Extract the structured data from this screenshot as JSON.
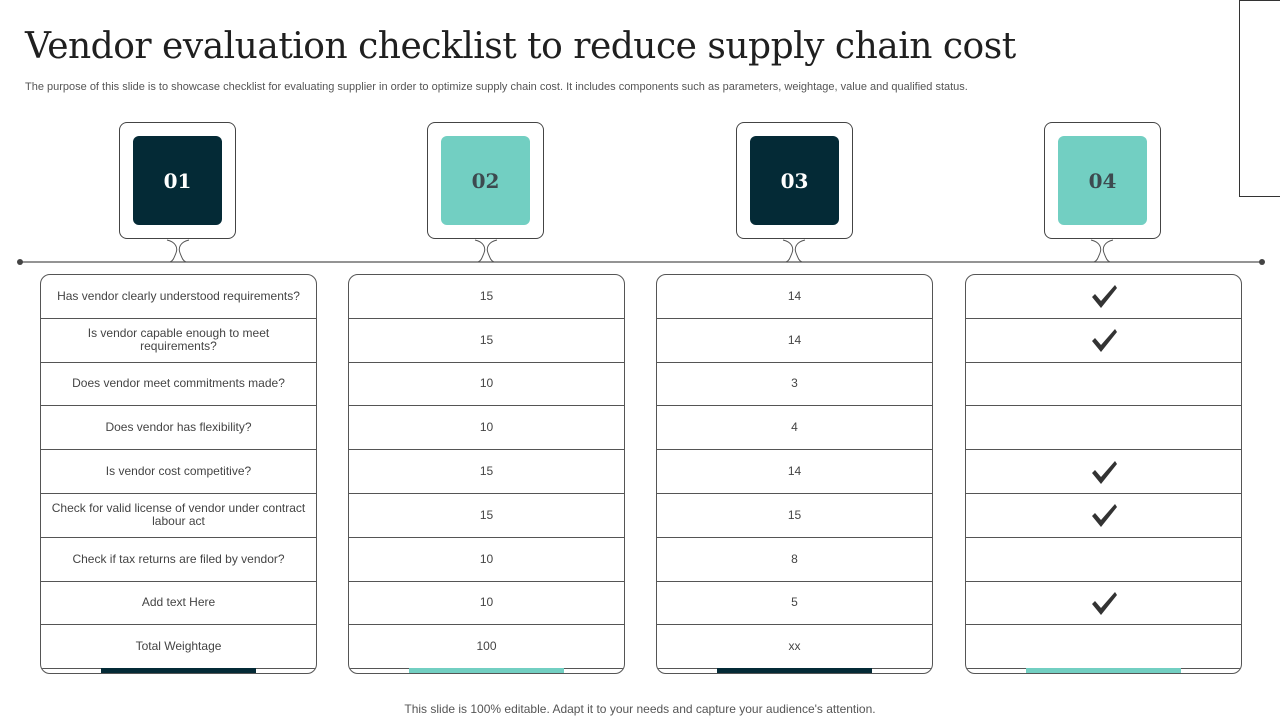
{
  "title": "Vendor evaluation checklist to reduce supply chain cost",
  "subtitle": "The purpose of this slide is to showcase checklist for evaluating supplier in order to optimize supply chain cost. It includes components such as parameters, weightage, value and qualified status.",
  "badges": [
    {
      "label": "01",
      "style": "dark"
    },
    {
      "label": "02",
      "style": "teal"
    },
    {
      "label": "03",
      "style": "dark"
    },
    {
      "label": "04",
      "style": "teal"
    }
  ],
  "colors": {
    "dark": "#042a36",
    "teal": "#72cfc2"
  },
  "parameters": [
    "Has vendor clearly understood requirements?",
    "Is vendor capable enough to meet requirements?",
    "Does vendor meet commitments made?",
    "Does vendor has flexibility?",
    "Is vendor cost competitive?",
    "Check for valid license of vendor under contract labour act",
    "Check if tax returns are filed by vendor?",
    "Add text Here",
    "Total Weightage"
  ],
  "weightage": [
    "15",
    "15",
    "10",
    "10",
    "15",
    "15",
    "10",
    "10",
    "100"
  ],
  "values": [
    "14",
    "14",
    "3",
    "4",
    "14",
    "15",
    "8",
    "5",
    "xx"
  ],
  "qualified": [
    true,
    true,
    false,
    false,
    true,
    true,
    false,
    true,
    false
  ],
  "check_icon": "checkmark-icon",
  "footer": "This slide is 100% editable. Adapt it to your needs and capture your audience's attention."
}
